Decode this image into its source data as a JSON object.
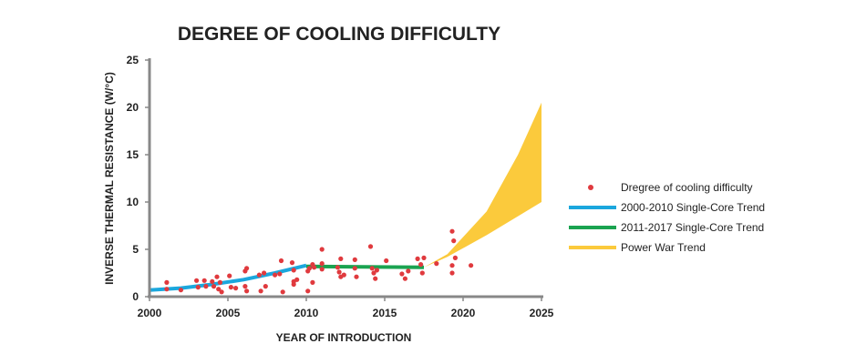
{
  "chart_data": {
    "type": "scatter",
    "title": "DEGREE OF COOLING DIFFICULTY",
    "xlabel": "YEAR OF INTRODUCTION",
    "ylabel": "INVERSE THERMAL RESISTANCE (W/°C)",
    "xlim": [
      2000,
      2025
    ],
    "ylim": [
      0,
      25
    ],
    "xticks": [
      2000,
      2005,
      2010,
      2015,
      2020,
      2025
    ],
    "yticks": [
      0,
      5,
      10,
      15,
      20,
      25
    ],
    "grid": false,
    "legend_position": "right",
    "colors": {
      "points": "#e03a3e",
      "trend_2000_2010": "#1ba7dd",
      "trend_2011_2017": "#1aa350",
      "power_war": "#fbca3c",
      "axis": "#888888"
    },
    "series": [
      {
        "name": "Dregree of cooling difficulty",
        "type": "scatter",
        "points": [
          [
            2001.1,
            1.5
          ],
          [
            2001.1,
            0.8
          ],
          [
            2002.0,
            0.7
          ],
          [
            2003.0,
            1.7
          ],
          [
            2003.1,
            1.0
          ],
          [
            2003.5,
            1.7
          ],
          [
            2003.6,
            1.1
          ],
          [
            2004.0,
            1.6
          ],
          [
            2004.1,
            1.1
          ],
          [
            2004.3,
            2.1
          ],
          [
            2004.4,
            0.8
          ],
          [
            2004.5,
            1.5
          ],
          [
            2004.6,
            0.5
          ],
          [
            2005.1,
            2.2
          ],
          [
            2005.2,
            1.0
          ],
          [
            2005.5,
            0.9
          ],
          [
            2006.1,
            2.7
          ],
          [
            2006.2,
            3.0
          ],
          [
            2006.1,
            1.1
          ],
          [
            2006.2,
            0.6
          ],
          [
            2007.0,
            2.3
          ],
          [
            2007.1,
            0.6
          ],
          [
            2007.3,
            2.5
          ],
          [
            2007.4,
            1.1
          ],
          [
            2008.0,
            2.3
          ],
          [
            2008.3,
            2.4
          ],
          [
            2008.4,
            3.8
          ],
          [
            2008.5,
            0.5
          ],
          [
            2009.1,
            3.6
          ],
          [
            2009.2,
            2.8
          ],
          [
            2009.2,
            1.6
          ],
          [
            2009.2,
            1.3
          ],
          [
            2009.4,
            1.8
          ],
          [
            2010.1,
            0.6
          ],
          [
            2010.1,
            2.7
          ],
          [
            2010.2,
            3.0
          ],
          [
            2010.4,
            3.4
          ],
          [
            2010.4,
            1.5
          ],
          [
            2010.5,
            3.1
          ],
          [
            2011.0,
            5.0
          ],
          [
            2011.0,
            3.5
          ],
          [
            2011.0,
            2.9
          ],
          [
            2012.0,
            3.1
          ],
          [
            2012.1,
            2.6
          ],
          [
            2012.2,
            4.0
          ],
          [
            2012.2,
            2.1
          ],
          [
            2012.4,
            2.3
          ],
          [
            2013.1,
            3.9
          ],
          [
            2013.1,
            3.0
          ],
          [
            2013.2,
            2.1
          ],
          [
            2014.1,
            5.3
          ],
          [
            2014.2,
            3.0
          ],
          [
            2014.3,
            2.5
          ],
          [
            2014.4,
            1.9
          ],
          [
            2014.5,
            2.8
          ],
          [
            2015.1,
            3.8
          ],
          [
            2016.1,
            2.4
          ],
          [
            2016.3,
            1.9
          ],
          [
            2016.5,
            2.7
          ],
          [
            2017.1,
            4.0
          ],
          [
            2017.3,
            3.4
          ],
          [
            2017.4,
            2.5
          ],
          [
            2017.5,
            4.1
          ],
          [
            2018.3,
            3.5
          ],
          [
            2019.3,
            6.9
          ],
          [
            2019.4,
            5.9
          ],
          [
            2019.5,
            4.1
          ],
          [
            2019.3,
            3.3
          ],
          [
            2019.3,
            2.5
          ],
          [
            2020.5,
            3.3
          ]
        ]
      },
      {
        "name": "2000-2010 Single-Core Trend",
        "type": "line",
        "points": [
          [
            2000,
            0.7
          ],
          [
            2002,
            0.9
          ],
          [
            2004,
            1.3
          ],
          [
            2006,
            1.8
          ],
          [
            2008,
            2.5
          ],
          [
            2010,
            3.3
          ]
        ]
      },
      {
        "name": "2011-2017 Single-Core Trend",
        "type": "line",
        "points": [
          [
            2010,
            3.2
          ],
          [
            2017.5,
            3.1
          ]
        ]
      },
      {
        "name": "Power War Trend",
        "type": "area",
        "upper": [
          [
            2017.5,
            3.1
          ],
          [
            2019,
            4.5
          ],
          [
            2021.5,
            9.0
          ],
          [
            2023.5,
            15.0
          ],
          [
            2025,
            20.5
          ]
        ],
        "lower": [
          [
            2017.5,
            3.1
          ],
          [
            2019,
            4.2
          ],
          [
            2021.5,
            6.5
          ],
          [
            2023.5,
            8.5
          ],
          [
            2025,
            10.0
          ]
        ]
      }
    ]
  }
}
